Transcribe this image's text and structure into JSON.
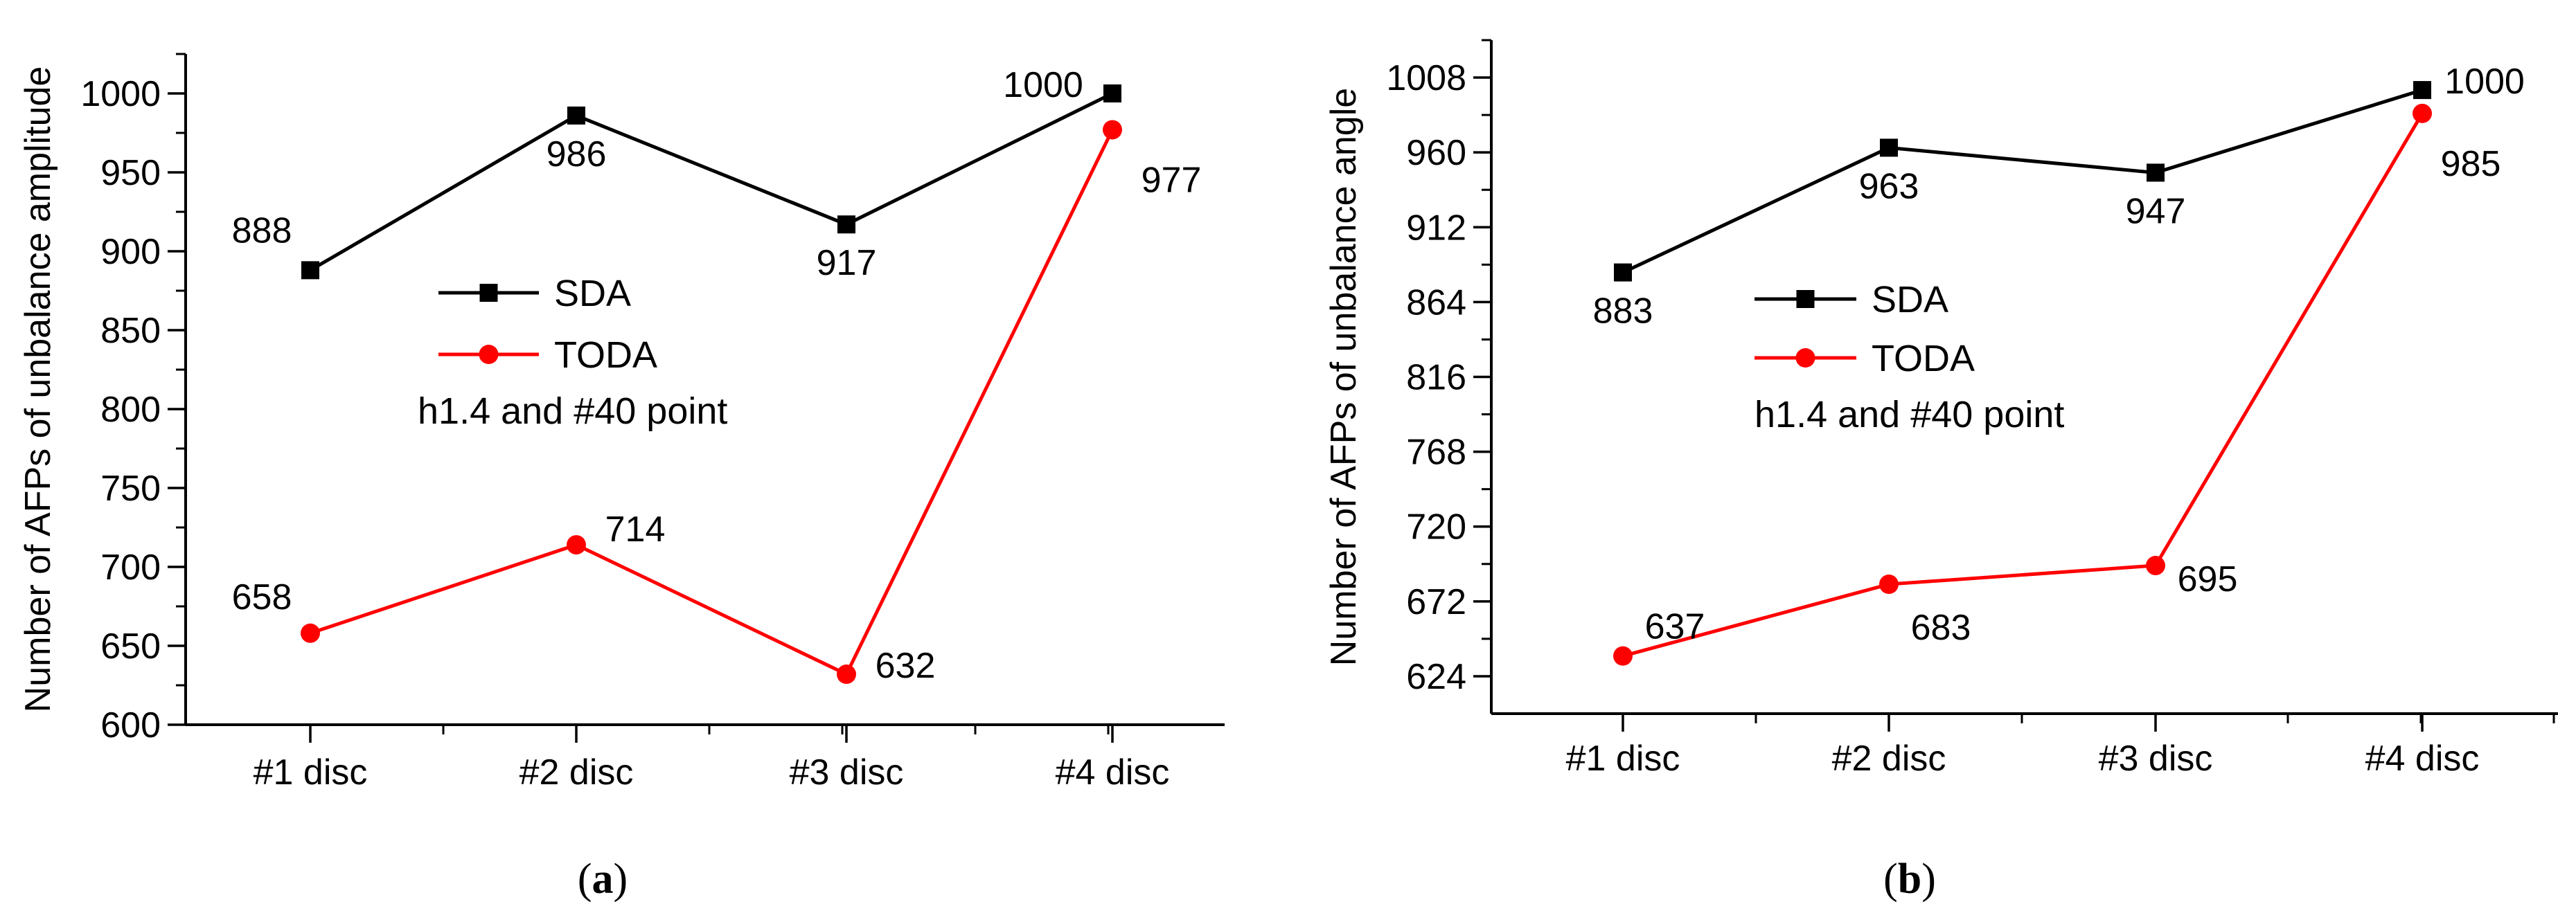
{
  "chart_data": [
    {
      "type": "line",
      "caption_letter": "a",
      "categories": [
        "#1 disc",
        "#2 disc",
        "#3 disc",
        "#4 disc"
      ],
      "series": [
        {
          "name": "SDA",
          "color": "#000000",
          "marker": "square",
          "values": [
            888,
            986,
            917,
            1000
          ],
          "labels": [
            "888",
            "986",
            "917",
            "1000"
          ]
        },
        {
          "name": "TODA",
          "color": "#ff0000",
          "marker": "circle",
          "values": [
            658,
            714,
            632,
            977
          ],
          "labels": [
            "658",
            "714",
            "632",
            "977"
          ]
        }
      ],
      "ylabel": "Number of AFPs of unbalance amplitude",
      "xlabel": "",
      "ylim": [
        600,
        1025
      ],
      "yticks": [
        600,
        650,
        700,
        750,
        800,
        850,
        900,
        950,
        1000
      ],
      "ytick_labels": [
        "600",
        "650",
        "700",
        "750",
        "800",
        "850",
        "900",
        "950",
        "1000"
      ],
      "minor_ytick_step": 25,
      "legend_note": "h1.4 and #40 point",
      "legend_position": "center",
      "grid": false
    },
    {
      "type": "line",
      "caption_letter": "b",
      "categories": [
        "#1 disc",
        "#2 disc",
        "#3 disc",
        "#4 disc"
      ],
      "series": [
        {
          "name": "SDA",
          "color": "#000000",
          "marker": "square",
          "values": [
            883,
            963,
            947,
            1000
          ],
          "labels": [
            "883",
            "963",
            "947",
            "1000"
          ]
        },
        {
          "name": "TODA",
          "color": "#ff0000",
          "marker": "circle",
          "values": [
            637,
            683,
            695,
            985
          ],
          "labels": [
            "637",
            "683",
            "695",
            "985"
          ]
        }
      ],
      "ylabel": "Number of AFPs of unbalance angle",
      "xlabel": "",
      "ylim": [
        600,
        1032
      ],
      "yticks": [
        624,
        672,
        720,
        768,
        816,
        864,
        912,
        960,
        1008
      ],
      "ytick_labels": [
        "624",
        "672",
        "720",
        "768",
        "816",
        "864",
        "912",
        "960",
        "1008"
      ],
      "minor_ytick_step": 24,
      "legend_note": "h1.4 and #40 point",
      "legend_position": "center",
      "grid": false
    }
  ]
}
